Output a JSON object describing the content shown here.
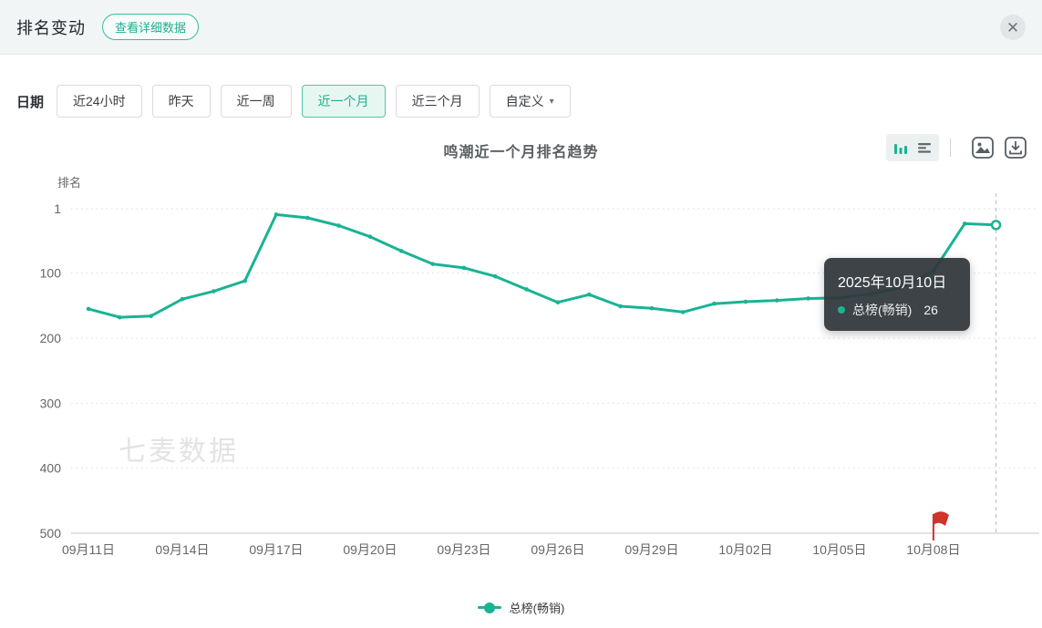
{
  "header": {
    "title": "排名变动",
    "detail_button": "查看详细数据",
    "close_icon": "✕"
  },
  "filters": {
    "label": "日期",
    "caret": "▾",
    "options": [
      {
        "label": "近24小时",
        "active": false
      },
      {
        "label": "昨天",
        "active": false
      },
      {
        "label": "近一周",
        "active": false
      },
      {
        "label": "近一个月",
        "active": true
      },
      {
        "label": "近三个月",
        "active": false
      },
      {
        "label": "自定义",
        "active": false,
        "dropdown": true
      }
    ]
  },
  "toolbar": {
    "icons": [
      "bar-chart-icon",
      "list-icon",
      "image-icon",
      "download-icon"
    ],
    "accent_color": "#1ab394"
  },
  "tooltip": {
    "date": "2025年10月10日",
    "series": "总榜(畅销)",
    "value": 26
  },
  "chart_data": {
    "type": "line",
    "title": "鸣潮近一个月排名趋势",
    "ylabel": "排名",
    "y_inverted": true,
    "ylim": [
      1,
      500
    ],
    "yticks": [
      1,
      100,
      200,
      300,
      400,
      500
    ],
    "grid": "dotted",
    "legend_position": "bottom",
    "watermark": "七麦数据",
    "xtick_every": 3,
    "x": [
      "09月11日",
      "09月12日",
      "09月13日",
      "09月14日",
      "09月15日",
      "09月16日",
      "09月17日",
      "09月18日",
      "09月19日",
      "09月20日",
      "09月21日",
      "09月22日",
      "09月23日",
      "09月24日",
      "09月25日",
      "09月26日",
      "09月27日",
      "09月28日",
      "09月29日",
      "09月30日",
      "10月01日",
      "10月02日",
      "10月03日",
      "10月04日",
      "10月05日",
      "10月06日",
      "10月07日",
      "10月08日",
      "10月09日",
      "10月10日"
    ],
    "series": [
      {
        "name": "总榜(畅销)",
        "color": "#1ab394",
        "values": [
          155,
          168,
          166,
          140,
          128,
          112,
          10,
          15,
          27,
          44,
          66,
          86,
          92,
          105,
          125,
          145,
          133,
          151,
          154,
          160,
          147,
          144,
          142,
          139,
          138,
          132,
          122,
          97,
          24,
          26
        ]
      }
    ],
    "hover_index": 29,
    "flag_marker": {
      "date": "10月08日",
      "color": "#d0342c"
    }
  }
}
